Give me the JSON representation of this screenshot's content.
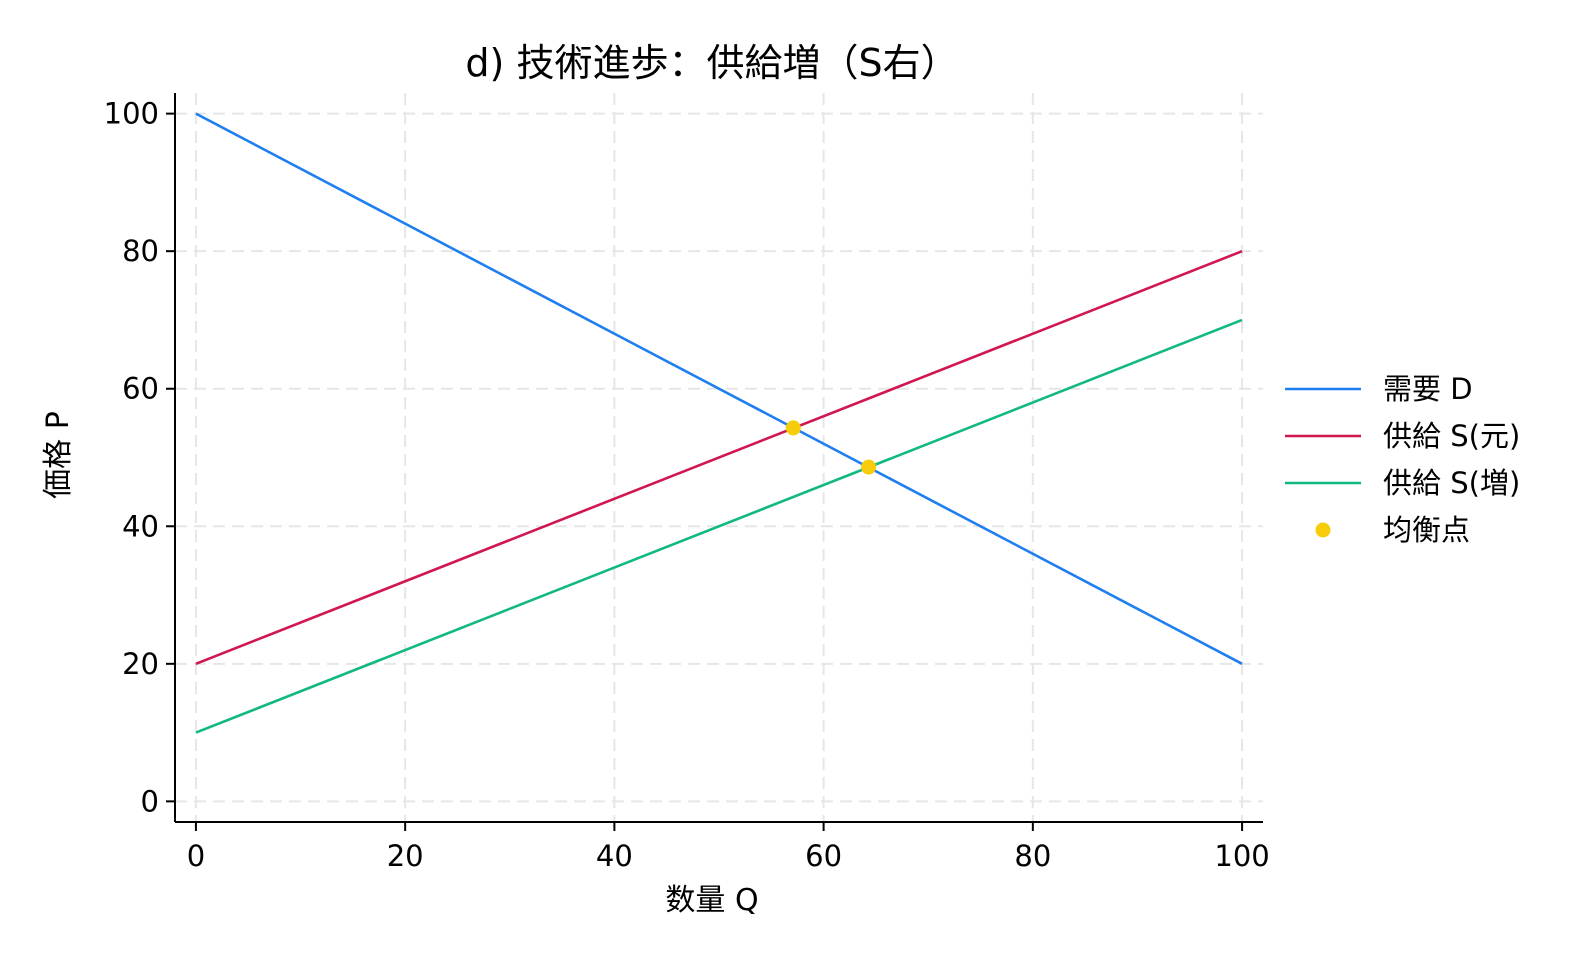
{
  "chart_data": {
    "type": "line",
    "title": "d) 技術進歩：供給増（S右）",
    "xlabel": "数量 Q",
    "ylabel": "価格 P",
    "xlim": [
      -2,
      102
    ],
    "ylim": [
      -3,
      103
    ],
    "xticks": [
      0,
      20,
      40,
      60,
      80,
      100
    ],
    "yticks": [
      0,
      20,
      40,
      60,
      80,
      100
    ],
    "grid": true,
    "legend_position": "right",
    "series": [
      {
        "name": "需要 D",
        "color": "#1f7ef0",
        "x": [
          0,
          100
        ],
        "y": [
          100,
          20
        ]
      },
      {
        "name": "供給 S(元)",
        "color": "#d0174f",
        "x": [
          0,
          100
        ],
        "y": [
          20,
          80
        ]
      },
      {
        "name": "供給 S(増)",
        "color": "#12b97f",
        "x": [
          0,
          100
        ],
        "y": [
          10,
          70
        ]
      }
    ],
    "points": {
      "name": "均衡点",
      "color": "#f7cc0a",
      "x": [
        57.1,
        64.3
      ],
      "y": [
        54.3,
        48.6
      ]
    }
  }
}
